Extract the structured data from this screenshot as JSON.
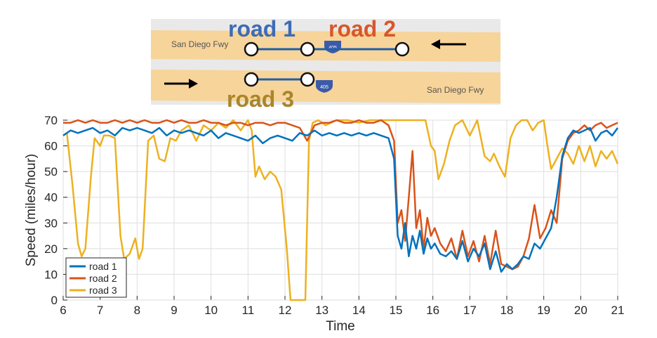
{
  "map": {
    "fwy_label_top": "San Diego Fwy",
    "fwy_label_bottom": "San Diego Fwy",
    "shield_text": "405",
    "road_labels": [
      {
        "text": "road 1",
        "color": "#3d6cb5"
      },
      {
        "text": "road 2",
        "color": "#d8572a"
      },
      {
        "text": "road 3",
        "color": "#a8862a"
      }
    ],
    "road_color": "#f7d49a",
    "segment_color": "#1f5fa8"
  },
  "chart_data": {
    "type": "line",
    "xlabel": "Time",
    "ylabel": "Speed (miles/hour)",
    "xlim": [
      6,
      21
    ],
    "ylim": [
      0,
      70
    ],
    "xticks": [
      "6",
      "7",
      "8",
      "9",
      "10",
      "11",
      "12",
      "13",
      "14",
      "15",
      "16",
      "17",
      "18",
      "19",
      "20",
      "21"
    ],
    "yticks": [
      "0",
      "10",
      "20",
      "30",
      "40",
      "50",
      "60",
      "70"
    ],
    "grid": true,
    "legend_position": "bottom-left",
    "series": [
      {
        "name": "road 1",
        "color": "#0072bd",
        "x": [
          6.0,
          6.2,
          6.4,
          6.6,
          6.8,
          7.0,
          7.2,
          7.4,
          7.6,
          7.8,
          8.0,
          8.2,
          8.4,
          8.6,
          8.8,
          9.0,
          9.2,
          9.4,
          9.6,
          9.8,
          10.0,
          10.2,
          10.4,
          10.6,
          10.8,
          11.0,
          11.2,
          11.4,
          11.6,
          11.8,
          12.0,
          12.2,
          12.4,
          12.6,
          12.8,
          13.0,
          13.2,
          13.4,
          13.6,
          13.8,
          14.0,
          14.2,
          14.4,
          14.6,
          14.8,
          14.95,
          15.05,
          15.15,
          15.25,
          15.35,
          15.45,
          15.55,
          15.65,
          15.75,
          15.85,
          15.95,
          16.05,
          16.2,
          16.35,
          16.5,
          16.65,
          16.8,
          16.95,
          17.1,
          17.25,
          17.4,
          17.55,
          17.7,
          17.85,
          18.0,
          18.15,
          18.3,
          18.45,
          18.6,
          18.75,
          18.9,
          19.05,
          19.2,
          19.35,
          19.5,
          19.65,
          19.8,
          19.95,
          20.1,
          20.25,
          20.4,
          20.55,
          20.7,
          20.85,
          21.0
        ],
        "values": [
          64,
          66,
          65,
          66,
          67,
          65,
          66,
          64,
          67,
          66,
          67,
          66,
          65,
          67,
          64,
          66,
          65,
          66,
          65,
          64,
          66,
          63,
          65,
          64,
          63,
          62,
          64,
          61,
          63,
          64,
          63,
          62,
          65,
          64,
          66,
          64,
          65,
          64,
          65,
          64,
          65,
          64,
          65,
          64,
          63,
          55,
          25,
          20,
          30,
          17,
          25,
          20,
          27,
          18,
          24,
          20,
          22,
          18,
          17,
          19,
          16,
          23,
          15,
          20,
          17,
          22,
          12,
          19,
          11,
          14,
          12,
          14,
          17,
          16,
          22,
          20,
          24,
          28,
          40,
          56,
          63,
          66,
          65,
          66,
          67,
          62,
          65,
          66,
          64,
          67
        ]
      },
      {
        "name": "road 2",
        "color": "#d95319",
        "x": [
          6.0,
          6.2,
          6.4,
          6.6,
          6.8,
          7.0,
          7.2,
          7.4,
          7.6,
          7.8,
          8.0,
          8.2,
          8.4,
          8.6,
          8.8,
          9.0,
          9.2,
          9.4,
          9.6,
          9.8,
          10.0,
          10.2,
          10.4,
          10.6,
          10.8,
          11.0,
          11.2,
          11.4,
          11.6,
          11.8,
          12.0,
          12.2,
          12.4,
          12.6,
          12.8,
          13.0,
          13.2,
          13.4,
          13.6,
          13.8,
          14.0,
          14.2,
          14.4,
          14.6,
          14.8,
          14.95,
          15.05,
          15.15,
          15.25,
          15.35,
          15.45,
          15.55,
          15.65,
          15.75,
          15.85,
          15.95,
          16.05,
          16.2,
          16.35,
          16.5,
          16.65,
          16.8,
          16.95,
          17.1,
          17.25,
          17.4,
          17.55,
          17.7,
          17.85,
          18.0,
          18.15,
          18.3,
          18.45,
          18.6,
          18.75,
          18.9,
          19.05,
          19.2,
          19.35,
          19.5,
          19.65,
          19.8,
          19.95,
          20.1,
          20.25,
          20.4,
          20.55,
          20.7,
          20.85,
          21.0
        ],
        "values": [
          69,
          69,
          70,
          69,
          70,
          69,
          69,
          70,
          69,
          70,
          69,
          70,
          69,
          69,
          70,
          69,
          70,
          69,
          69,
          70,
          69,
          69,
          68,
          69,
          69,
          68,
          69,
          69,
          68,
          69,
          69,
          68,
          67,
          62,
          68,
          69,
          69,
          70,
          69,
          69,
          70,
          69,
          69,
          70,
          68,
          62,
          30,
          35,
          23,
          40,
          58,
          28,
          35,
          20,
          32,
          25,
          28,
          22,
          19,
          24,
          16,
          27,
          17,
          23,
          15,
          25,
          14,
          27,
          14,
          13,
          12,
          13,
          17,
          24,
          37,
          24,
          28,
          35,
          30,
          55,
          62,
          65,
          66,
          68,
          66,
          68,
          69,
          67,
          68,
          69
        ]
      },
      {
        "name": "road 3",
        "color": "#edb120",
        "x": [
          6.0,
          6.1,
          6.25,
          6.4,
          6.5,
          6.6,
          6.75,
          6.85,
          7.0,
          7.1,
          7.25,
          7.4,
          7.55,
          7.65,
          7.8,
          7.95,
          8.05,
          8.15,
          8.3,
          8.45,
          8.6,
          8.75,
          8.9,
          9.05,
          9.2,
          9.4,
          9.6,
          9.8,
          10.0,
          10.2,
          10.4,
          10.6,
          10.8,
          11.0,
          11.1,
          11.2,
          11.3,
          11.45,
          11.6,
          11.75,
          11.9,
          12.05,
          12.15,
          12.25,
          12.4,
          12.55,
          12.65,
          12.75,
          12.9,
          13.1,
          13.4,
          13.7,
          14.0,
          14.3,
          14.6,
          14.9,
          15.2,
          15.5,
          15.8,
          15.95,
          16.05,
          16.15,
          16.3,
          16.45,
          16.6,
          16.8,
          17.0,
          17.2,
          17.4,
          17.55,
          17.65,
          17.8,
          17.95,
          18.1,
          18.25,
          18.4,
          18.55,
          18.7,
          18.85,
          19.0,
          19.1,
          19.2,
          19.35,
          19.5,
          19.65,
          19.8,
          19.95,
          20.1,
          20.25,
          20.4,
          20.55,
          20.7,
          20.85,
          21.0
        ],
        "values": [
          64,
          65,
          45,
          22,
          17,
          20,
          48,
          63,
          60,
          64,
          64,
          63,
          25,
          16,
          18,
          24,
          16,
          20,
          62,
          64,
          55,
          54,
          63,
          62,
          66,
          68,
          62,
          68,
          66,
          69,
          67,
          70,
          66,
          70,
          66,
          48,
          52,
          47,
          50,
          48,
          43,
          20,
          0,
          0,
          0,
          0,
          62,
          69,
          70,
          68,
          70,
          70,
          69,
          70,
          70,
          70,
          70,
          70,
          70,
          60,
          58,
          47,
          53,
          62,
          68,
          70,
          64,
          70,
          56,
          54,
          57,
          52,
          48,
          63,
          68,
          70,
          70,
          66,
          69,
          70,
          60,
          51,
          55,
          59,
          57,
          53,
          60,
          54,
          60,
          52,
          58,
          55,
          58,
          53
        ]
      }
    ]
  }
}
